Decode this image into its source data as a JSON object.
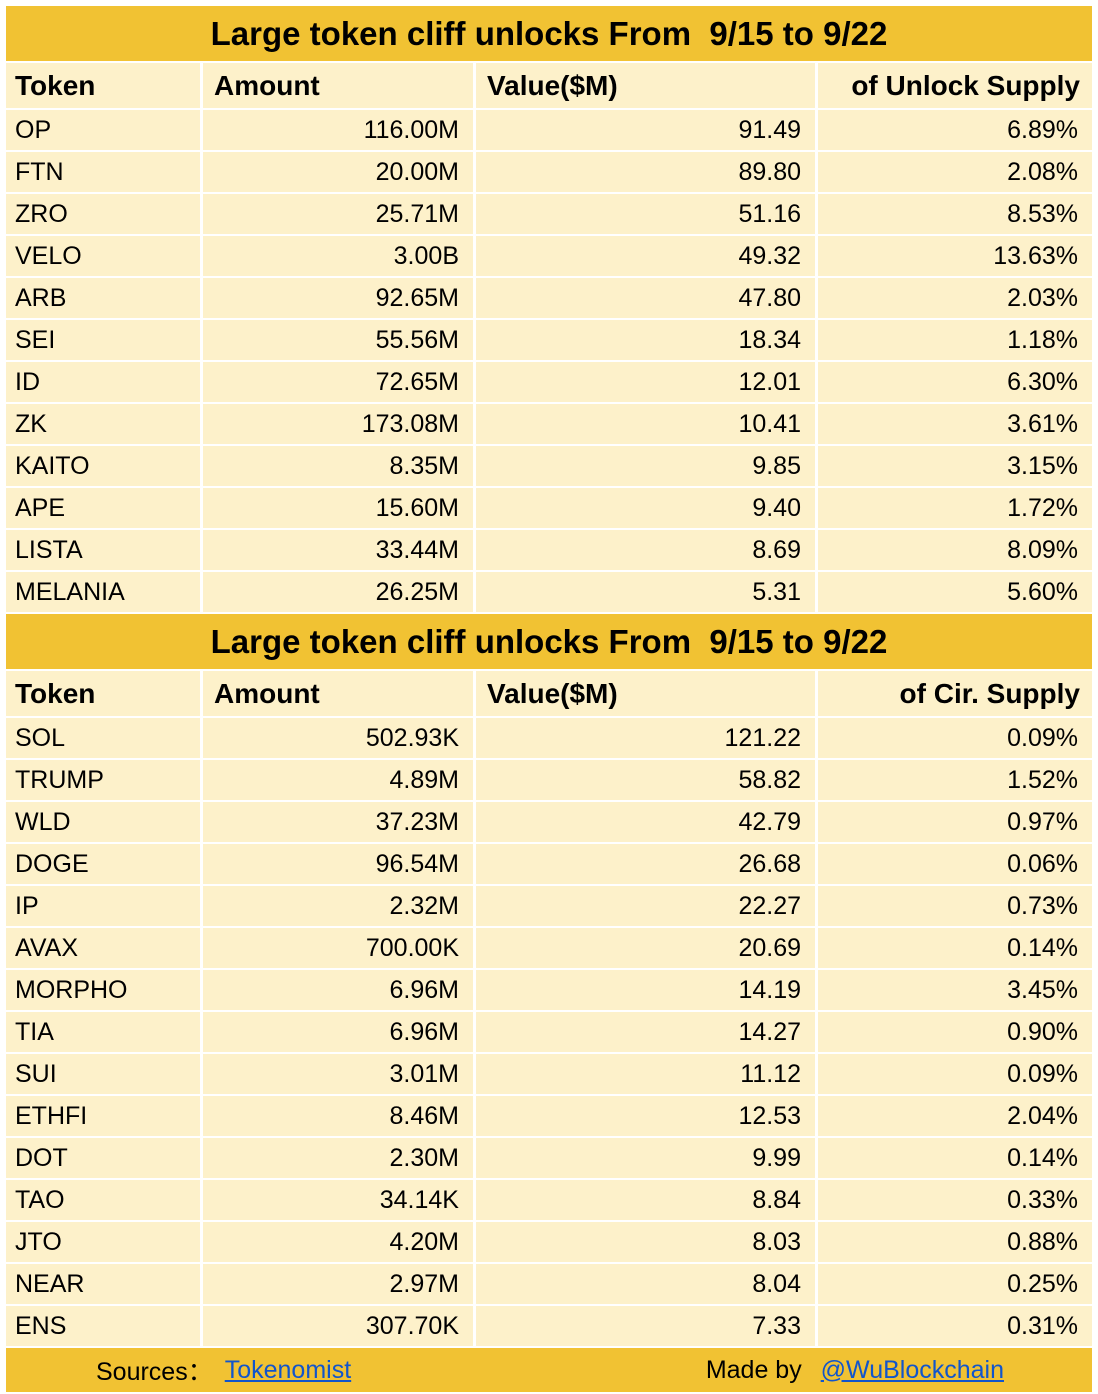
{
  "chart_data": [
    {
      "type": "table",
      "title": "Large token cliff unlocks From  9/15 to 9/22",
      "columns": [
        "Token",
        "Amount",
        "Value($M)",
        "of Unlock Supply"
      ],
      "rows": [
        [
          "OP",
          "116.00M",
          "91.49",
          "6.89%"
        ],
        [
          "FTN",
          "20.00M",
          "89.80",
          "2.08%"
        ],
        [
          "ZRO",
          "25.71M",
          "51.16",
          "8.53%"
        ],
        [
          "VELO",
          "3.00B",
          "49.32",
          "13.63%"
        ],
        [
          "ARB",
          "92.65M",
          "47.80",
          "2.03%"
        ],
        [
          "SEI",
          "55.56M",
          "18.34",
          "1.18%"
        ],
        [
          "ID",
          "72.65M",
          "12.01",
          "6.30%"
        ],
        [
          "ZK",
          "173.08M",
          "10.41",
          "3.61%"
        ],
        [
          "KAITO",
          "8.35M",
          "9.85",
          "3.15%"
        ],
        [
          "APE",
          "15.60M",
          "9.40",
          "1.72%"
        ],
        [
          "LISTA",
          "33.44M",
          "8.69",
          "8.09%"
        ],
        [
          "MELANIA",
          "26.25M",
          "5.31",
          "5.60%"
        ]
      ],
      "layout": {
        "grid": "white gridlines",
        "header": "bold",
        "numeric_alignment": "right"
      }
    },
    {
      "type": "table",
      "title": "Large token cliff unlocks From  9/15 to 9/22",
      "columns": [
        "Token",
        "Amount",
        "Value($M)",
        "of Cir. Supply"
      ],
      "rows": [
        [
          "SOL",
          "502.93K",
          "121.22",
          "0.09%"
        ],
        [
          "TRUMP",
          "4.89M",
          "58.82",
          "1.52%"
        ],
        [
          "WLD",
          "37.23M",
          "42.79",
          "0.97%"
        ],
        [
          "DOGE",
          "96.54M",
          "26.68",
          "0.06%"
        ],
        [
          "IP",
          "2.32M",
          "22.27",
          "0.73%"
        ],
        [
          "AVAX",
          "700.00K",
          "20.69",
          "0.14%"
        ],
        [
          "MORPHO",
          "6.96M",
          "14.19",
          "3.45%"
        ],
        [
          "TIA",
          "6.96M",
          "14.27",
          "0.90%"
        ],
        [
          "SUI",
          "3.01M",
          "11.12",
          "0.09%"
        ],
        [
          "ETHFI",
          "8.46M",
          "12.53",
          "2.04%"
        ],
        [
          "DOT",
          "2.30M",
          "9.99",
          "0.14%"
        ],
        [
          "TAO",
          "34.14K",
          "8.84",
          "0.33%"
        ],
        [
          "JTO",
          "4.20M",
          "8.03",
          "0.88%"
        ],
        [
          "NEAR",
          "2.97M",
          "8.04",
          "0.25%"
        ],
        [
          "ENS",
          "307.70K",
          "7.33",
          "0.31%"
        ]
      ],
      "layout": {
        "grid": "white gridlines",
        "header": "bold",
        "numeric_alignment": "right"
      }
    }
  ],
  "footer": {
    "sources_label": "Sources：",
    "sources_link": "Tokenomist",
    "made_by_label": "Made by ",
    "made_by_link": "@WuBlockchain"
  },
  "colors": {
    "title_bg": "#F1C233",
    "cell_bg": "#FDF1CA",
    "footer_bg": "#F1C233",
    "link": "#1155CC",
    "grid": "#FFFFFF",
    "text": "#000000"
  }
}
